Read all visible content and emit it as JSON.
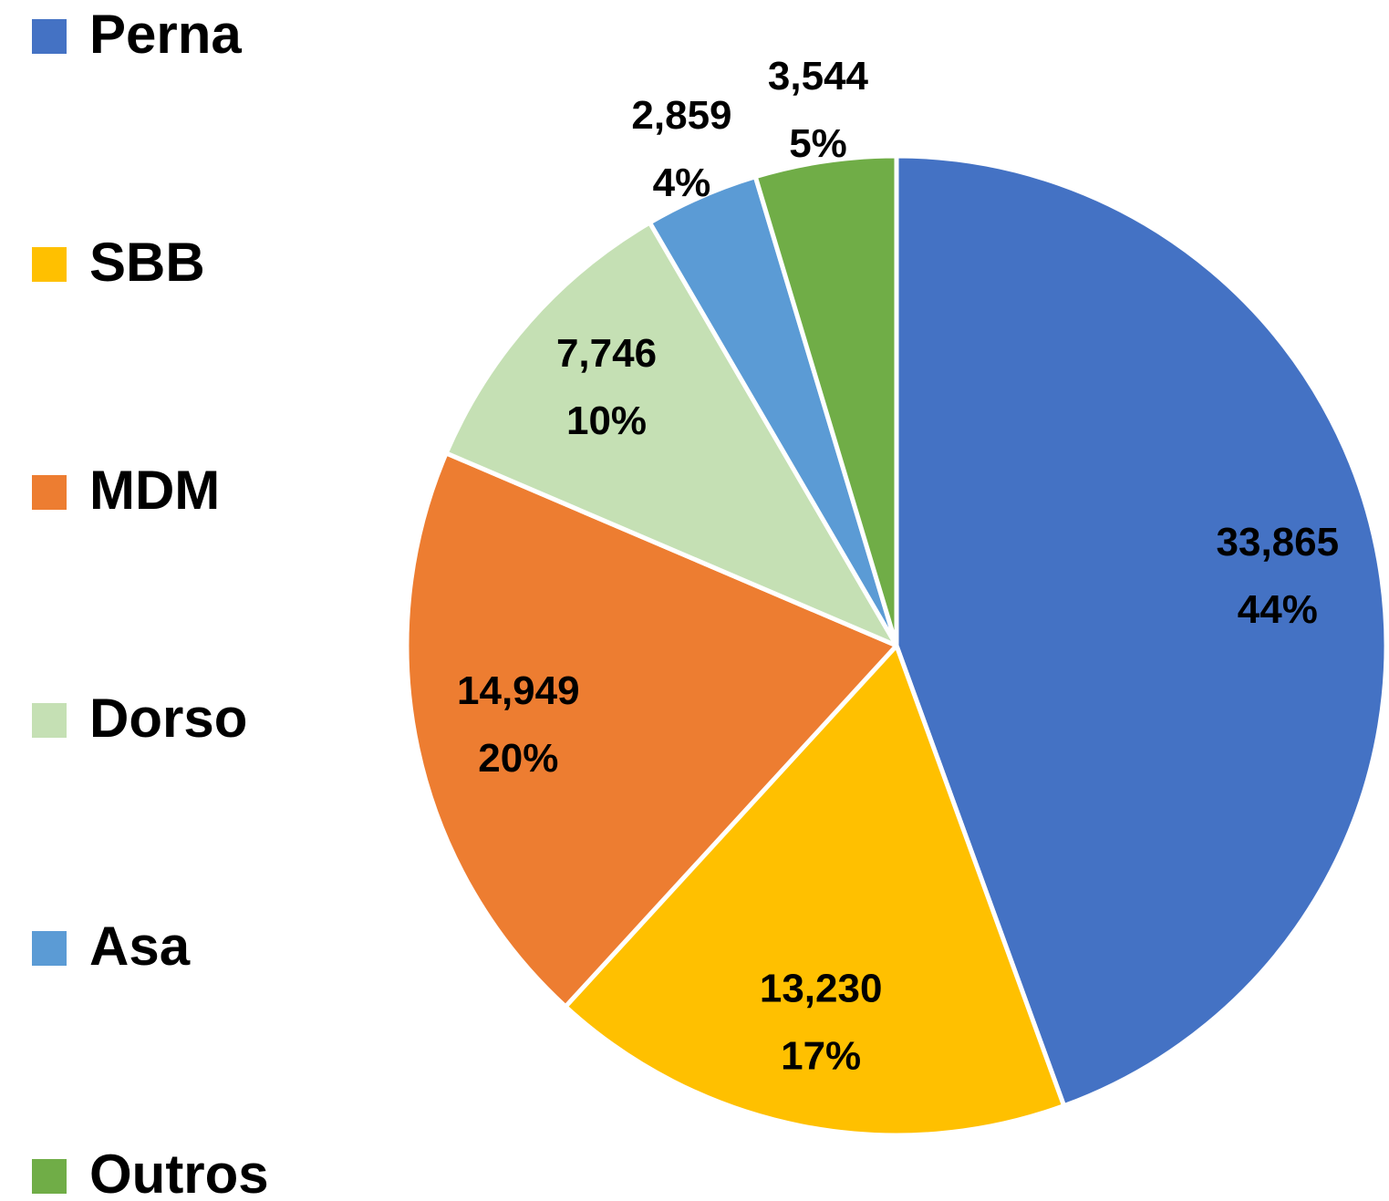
{
  "chart_data": {
    "type": "pie",
    "categories": [
      "Perna",
      "SBB",
      "MDM",
      "Dorso",
      "Asa",
      "Outros"
    ],
    "values": [
      33865,
      13230,
      14949,
      7746,
      2859,
      3544
    ],
    "value_labels": [
      "33,865",
      "13,230",
      "14,949",
      "7,746",
      "2,859",
      "3,544"
    ],
    "percentages": [
      44,
      17,
      20,
      10,
      4,
      5
    ],
    "percentage_labels": [
      "44%",
      "17%",
      "20%",
      "10%",
      "4%",
      "5%"
    ],
    "colors": [
      "#4472c4",
      "#ffc000",
      "#ed7d31",
      "#c5e0b4",
      "#5b9bd5",
      "#70ad47"
    ],
    "legend": "left"
  }
}
